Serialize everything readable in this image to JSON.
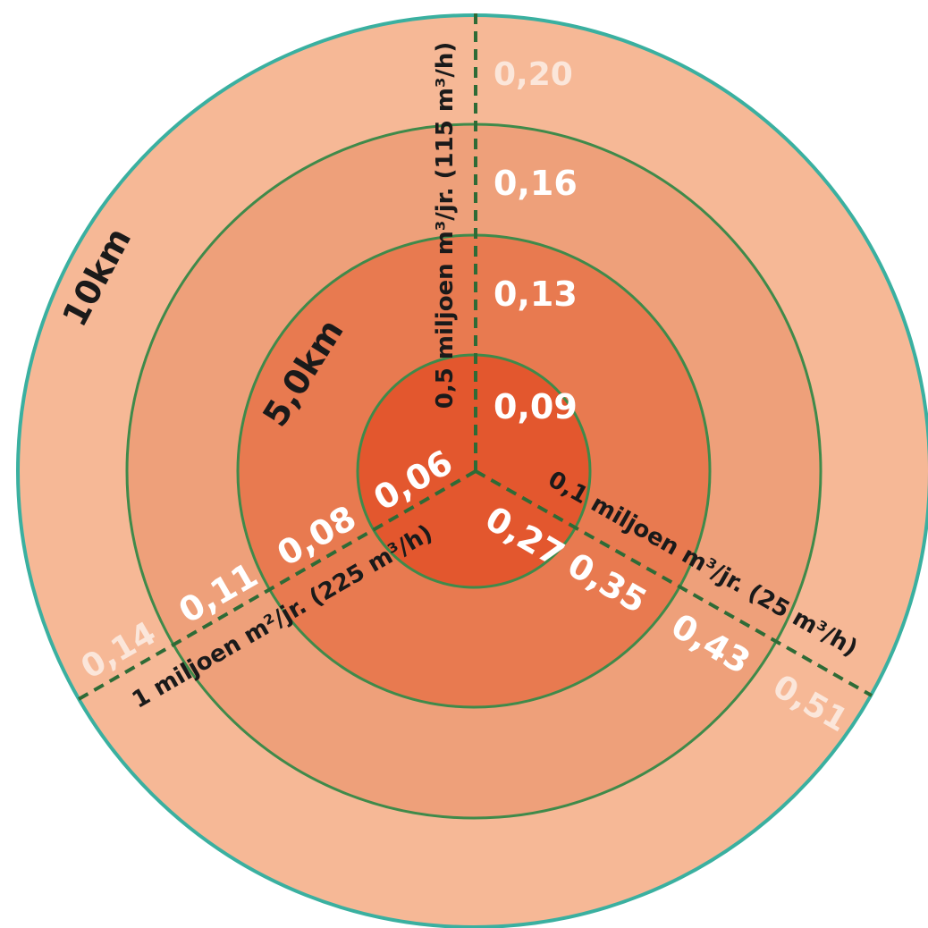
{
  "colors": {
    "ring_10km": "#f6b896",
    "ring_mid_outer": "#eea07a",
    "ring_mid_inner": "#e87a50",
    "ring_inner": "#e3572e",
    "core": "#dc4520",
    "outline_outer": "#3ab0a0",
    "outline_inner": "#3f8a4a",
    "dash": "#2e6b36"
  },
  "ring_labels": {
    "outer": "10km",
    "middle": "5,0km"
  },
  "axes": {
    "vertical": "0,5 miljoen m³/jr. (115 m³/h)",
    "right": "0,1 miljoen m³/jr. (25 m³/h)",
    "left": "1 miljoen m²/jr. (225 m³/h)"
  },
  "values": {
    "vertical": [
      "0,09",
      "0,13",
      "0,16",
      "0,20"
    ],
    "right": [
      "0,27",
      "0,35",
      "0,43",
      "0,51"
    ],
    "left": [
      "0,06",
      "0,08",
      "0,11",
      "0,14"
    ]
  }
}
